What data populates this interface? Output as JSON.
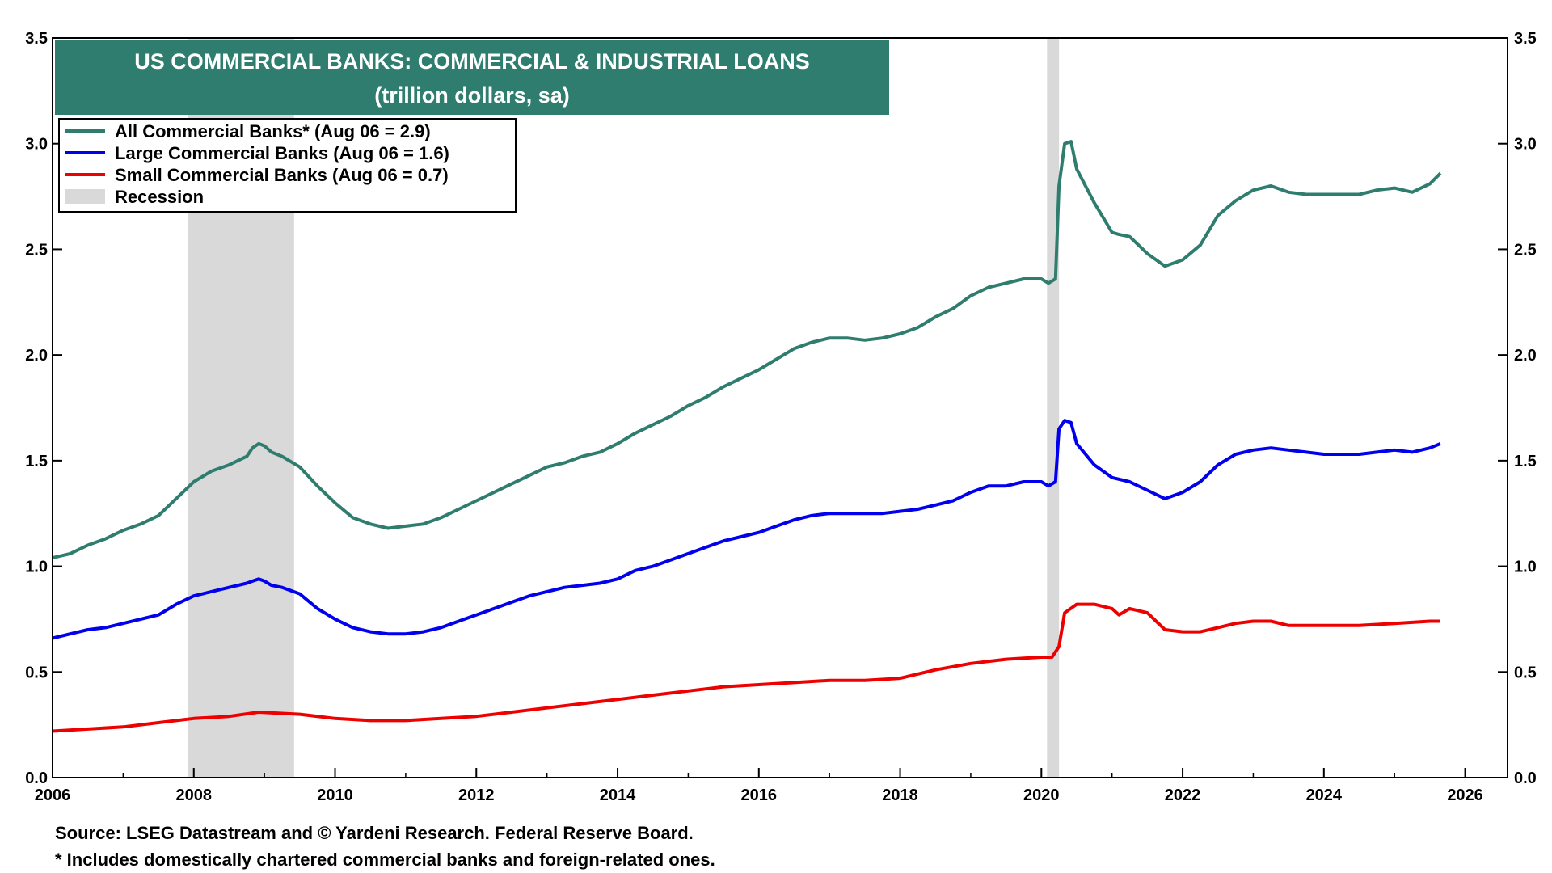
{
  "chart_data": {
    "type": "line",
    "title": "US COMMERCIAL BANKS: COMMERCIAL & INDUSTRIAL LOANS",
    "subtitle": "(trillion dollars, sa)",
    "xlim": [
      2006,
      2026.6
    ],
    "ylim": [
      0,
      3.5
    ],
    "x_ticks": [
      "2006",
      "2008",
      "2010",
      "2012",
      "2014",
      "2016",
      "2018",
      "2020",
      "2022",
      "2024",
      "2026"
    ],
    "y_ticks": [
      "0.0",
      "0.5",
      "1.0",
      "1.5",
      "2.0",
      "2.5",
      "3.0",
      "3.5"
    ],
    "legend_position": "top-left",
    "recessions": [
      {
        "start": 2007.92,
        "end": 2009.42
      },
      {
        "start": 2020.08,
        "end": 2020.25
      }
    ],
    "series": [
      {
        "name": "All Commercial Banks* (Aug 06 = 2.9)",
        "color": "#2e7d6f",
        "points": [
          [
            2006.0,
            1.04
          ],
          [
            2006.25,
            1.06
          ],
          [
            2006.5,
            1.1
          ],
          [
            2006.75,
            1.13
          ],
          [
            2007.0,
            1.17
          ],
          [
            2007.25,
            1.2
          ],
          [
            2007.5,
            1.24
          ],
          [
            2007.75,
            1.32
          ],
          [
            2008.0,
            1.4
          ],
          [
            2008.25,
            1.45
          ],
          [
            2008.5,
            1.48
          ],
          [
            2008.75,
            1.52
          ],
          [
            2008.83,
            1.56
          ],
          [
            2008.92,
            1.58
          ],
          [
            2009.0,
            1.57
          ],
          [
            2009.1,
            1.54
          ],
          [
            2009.25,
            1.52
          ],
          [
            2009.5,
            1.47
          ],
          [
            2009.75,
            1.38
          ],
          [
            2010.0,
            1.3
          ],
          [
            2010.25,
            1.23
          ],
          [
            2010.5,
            1.2
          ],
          [
            2010.75,
            1.18
          ],
          [
            2011.0,
            1.19
          ],
          [
            2011.25,
            1.2
          ],
          [
            2011.5,
            1.23
          ],
          [
            2011.75,
            1.27
          ],
          [
            2012.0,
            1.31
          ],
          [
            2012.25,
            1.35
          ],
          [
            2012.5,
            1.39
          ],
          [
            2012.75,
            1.43
          ],
          [
            2013.0,
            1.47
          ],
          [
            2013.25,
            1.49
          ],
          [
            2013.5,
            1.52
          ],
          [
            2013.75,
            1.54
          ],
          [
            2014.0,
            1.58
          ],
          [
            2014.25,
            1.63
          ],
          [
            2014.5,
            1.67
          ],
          [
            2014.75,
            1.71
          ],
          [
            2015.0,
            1.76
          ],
          [
            2015.25,
            1.8
          ],
          [
            2015.5,
            1.85
          ],
          [
            2015.75,
            1.89
          ],
          [
            2016.0,
            1.93
          ],
          [
            2016.25,
            1.98
          ],
          [
            2016.5,
            2.03
          ],
          [
            2016.75,
            2.06
          ],
          [
            2017.0,
            2.08
          ],
          [
            2017.25,
            2.08
          ],
          [
            2017.5,
            2.07
          ],
          [
            2017.75,
            2.08
          ],
          [
            2018.0,
            2.1
          ],
          [
            2018.25,
            2.13
          ],
          [
            2018.5,
            2.18
          ],
          [
            2018.75,
            2.22
          ],
          [
            2019.0,
            2.28
          ],
          [
            2019.25,
            2.32
          ],
          [
            2019.5,
            2.34
          ],
          [
            2019.75,
            2.36
          ],
          [
            2020.0,
            2.36
          ],
          [
            2020.1,
            2.34
          ],
          [
            2020.2,
            2.36
          ],
          [
            2020.25,
            2.8
          ],
          [
            2020.33,
            3.0
          ],
          [
            2020.42,
            3.01
          ],
          [
            2020.5,
            2.88
          ],
          [
            2020.75,
            2.72
          ],
          [
            2021.0,
            2.58
          ],
          [
            2021.1,
            2.57
          ],
          [
            2021.25,
            2.56
          ],
          [
            2021.5,
            2.48
          ],
          [
            2021.75,
            2.42
          ],
          [
            2022.0,
            2.45
          ],
          [
            2022.25,
            2.52
          ],
          [
            2022.5,
            2.66
          ],
          [
            2022.75,
            2.73
          ],
          [
            2023.0,
            2.78
          ],
          [
            2023.25,
            2.8
          ],
          [
            2023.5,
            2.77
          ],
          [
            2023.75,
            2.76
          ],
          [
            2024.0,
            2.76
          ],
          [
            2024.25,
            2.76
          ],
          [
            2024.5,
            2.76
          ],
          [
            2024.75,
            2.78
          ],
          [
            2025.0,
            2.79
          ],
          [
            2025.25,
            2.77
          ],
          [
            2025.5,
            2.81
          ],
          [
            2025.65,
            2.86
          ]
        ]
      },
      {
        "name": "Large Commercial Banks (Aug 06 = 1.6)",
        "color": "#0000ee",
        "points": [
          [
            2006.0,
            0.66
          ],
          [
            2006.25,
            0.68
          ],
          [
            2006.5,
            0.7
          ],
          [
            2006.75,
            0.71
          ],
          [
            2007.0,
            0.73
          ],
          [
            2007.25,
            0.75
          ],
          [
            2007.5,
            0.77
          ],
          [
            2007.75,
            0.82
          ],
          [
            2008.0,
            0.86
          ],
          [
            2008.25,
            0.88
          ],
          [
            2008.5,
            0.9
          ],
          [
            2008.75,
            0.92
          ],
          [
            2008.83,
            0.93
          ],
          [
            2008.92,
            0.94
          ],
          [
            2009.0,
            0.93
          ],
          [
            2009.1,
            0.91
          ],
          [
            2009.25,
            0.9
          ],
          [
            2009.5,
            0.87
          ],
          [
            2009.75,
            0.8
          ],
          [
            2010.0,
            0.75
          ],
          [
            2010.25,
            0.71
          ],
          [
            2010.5,
            0.69
          ],
          [
            2010.75,
            0.68
          ],
          [
            2011.0,
            0.68
          ],
          [
            2011.25,
            0.69
          ],
          [
            2011.5,
            0.71
          ],
          [
            2011.75,
            0.74
          ],
          [
            2012.0,
            0.77
          ],
          [
            2012.25,
            0.8
          ],
          [
            2012.5,
            0.83
          ],
          [
            2012.75,
            0.86
          ],
          [
            2013.0,
            0.88
          ],
          [
            2013.25,
            0.9
          ],
          [
            2013.5,
            0.91
          ],
          [
            2013.75,
            0.92
          ],
          [
            2014.0,
            0.94
          ],
          [
            2014.25,
            0.98
          ],
          [
            2014.5,
            1.0
          ],
          [
            2014.75,
            1.03
          ],
          [
            2015.0,
            1.06
          ],
          [
            2015.25,
            1.09
          ],
          [
            2015.5,
            1.12
          ],
          [
            2015.75,
            1.14
          ],
          [
            2016.0,
            1.16
          ],
          [
            2016.25,
            1.19
          ],
          [
            2016.5,
            1.22
          ],
          [
            2016.75,
            1.24
          ],
          [
            2017.0,
            1.25
          ],
          [
            2017.25,
            1.25
          ],
          [
            2017.5,
            1.25
          ],
          [
            2017.75,
            1.25
          ],
          [
            2018.0,
            1.26
          ],
          [
            2018.25,
            1.27
          ],
          [
            2018.5,
            1.29
          ],
          [
            2018.75,
            1.31
          ],
          [
            2019.0,
            1.35
          ],
          [
            2019.25,
            1.38
          ],
          [
            2019.5,
            1.38
          ],
          [
            2019.75,
            1.4
          ],
          [
            2020.0,
            1.4
          ],
          [
            2020.1,
            1.38
          ],
          [
            2020.2,
            1.4
          ],
          [
            2020.25,
            1.65
          ],
          [
            2020.33,
            1.69
          ],
          [
            2020.42,
            1.68
          ],
          [
            2020.5,
            1.58
          ],
          [
            2020.75,
            1.48
          ],
          [
            2021.0,
            1.42
          ],
          [
            2021.25,
            1.4
          ],
          [
            2021.5,
            1.36
          ],
          [
            2021.75,
            1.32
          ],
          [
            2022.0,
            1.35
          ],
          [
            2022.25,
            1.4
          ],
          [
            2022.5,
            1.48
          ],
          [
            2022.75,
            1.53
          ],
          [
            2023.0,
            1.55
          ],
          [
            2023.25,
            1.56
          ],
          [
            2023.5,
            1.55
          ],
          [
            2023.75,
            1.54
          ],
          [
            2024.0,
            1.53
          ],
          [
            2024.25,
            1.53
          ],
          [
            2024.5,
            1.53
          ],
          [
            2024.75,
            1.54
          ],
          [
            2025.0,
            1.55
          ],
          [
            2025.25,
            1.54
          ],
          [
            2025.5,
            1.56
          ],
          [
            2025.65,
            1.58
          ]
        ]
      },
      {
        "name": "Small Commercial Banks (Aug 06 = 0.7)",
        "color": "#ee0000",
        "points": [
          [
            2006.0,
            0.22
          ],
          [
            2006.5,
            0.23
          ],
          [
            2007.0,
            0.24
          ],
          [
            2007.5,
            0.26
          ],
          [
            2008.0,
            0.28
          ],
          [
            2008.5,
            0.29
          ],
          [
            2008.92,
            0.31
          ],
          [
            2009.5,
            0.3
          ],
          [
            2010.0,
            0.28
          ],
          [
            2010.5,
            0.27
          ],
          [
            2011.0,
            0.27
          ],
          [
            2011.5,
            0.28
          ],
          [
            2012.0,
            0.29
          ],
          [
            2012.5,
            0.31
          ],
          [
            2013.0,
            0.33
          ],
          [
            2013.5,
            0.35
          ],
          [
            2014.0,
            0.37
          ],
          [
            2014.5,
            0.39
          ],
          [
            2015.0,
            0.41
          ],
          [
            2015.5,
            0.43
          ],
          [
            2016.0,
            0.44
          ],
          [
            2016.5,
            0.45
          ],
          [
            2017.0,
            0.46
          ],
          [
            2017.5,
            0.46
          ],
          [
            2018.0,
            0.47
          ],
          [
            2018.5,
            0.51
          ],
          [
            2019.0,
            0.54
          ],
          [
            2019.5,
            0.56
          ],
          [
            2020.0,
            0.57
          ],
          [
            2020.15,
            0.57
          ],
          [
            2020.25,
            0.62
          ],
          [
            2020.33,
            0.78
          ],
          [
            2020.5,
            0.82
          ],
          [
            2020.75,
            0.82
          ],
          [
            2021.0,
            0.8
          ],
          [
            2021.1,
            0.77
          ],
          [
            2021.25,
            0.8
          ],
          [
            2021.5,
            0.78
          ],
          [
            2021.75,
            0.7
          ],
          [
            2022.0,
            0.69
          ],
          [
            2022.25,
            0.69
          ],
          [
            2022.5,
            0.71
          ],
          [
            2022.75,
            0.73
          ],
          [
            2023.0,
            0.74
          ],
          [
            2023.25,
            0.74
          ],
          [
            2023.5,
            0.72
          ],
          [
            2023.75,
            0.72
          ],
          [
            2024.0,
            0.72
          ],
          [
            2024.5,
            0.72
          ],
          [
            2025.0,
            0.73
          ],
          [
            2025.5,
            0.74
          ],
          [
            2025.65,
            0.74
          ]
        ]
      }
    ],
    "recession_legend": {
      "name": "Recession",
      "color": "#d9d9d9"
    }
  },
  "footer": {
    "source": "Source: LSEG Datastream and © Yardeni Research. Federal Reserve Board.",
    "note": "* Includes domestically chartered commercial banks and foreign-related ones."
  },
  "colors": {
    "title_bg": "#2e7d6f",
    "recession": "#d9d9d9"
  }
}
